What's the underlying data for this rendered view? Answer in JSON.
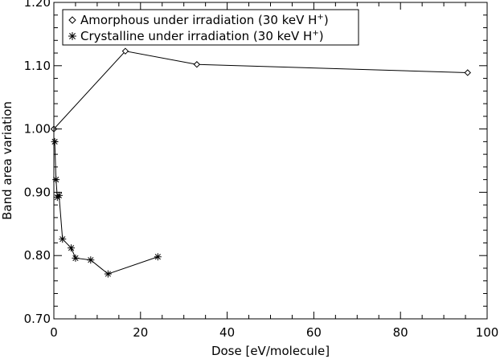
{
  "chart_data": {
    "type": "line",
    "xlabel": "Dose [eV/molecule]",
    "ylabel": "Band area variation",
    "xlim": [
      0,
      100
    ],
    "ylim": [
      0.7,
      1.2
    ],
    "x_ticks": [
      0,
      20,
      40,
      60,
      80,
      100
    ],
    "x_tick_labels": [
      "0",
      "20",
      "40",
      "60",
      "80",
      "100"
    ],
    "y_ticks": [
      0.7,
      0.8,
      0.9,
      1.0,
      1.1,
      1.2
    ],
    "y_tick_labels": [
      "0.70",
      "0.80",
      "0.90",
      "1.00",
      "1.10",
      "1.20"
    ],
    "grid": false,
    "legend_position": "top-left",
    "series": [
      {
        "name": "Amorphous under irradiation (30 keV H+)",
        "legend_main": "Amorphous under irradiation (30 keV H",
        "legend_sup": "+",
        "legend_end": ")",
        "marker": "diamond",
        "color": "#000000",
        "x": [
          0,
          16.5,
          33,
          95.5
        ],
        "y": [
          1.0,
          1.123,
          1.102,
          1.089
        ]
      },
      {
        "name": "Crystalline under irradiation (30 keV H+)",
        "legend_main": "Crystalline under irradiation (30 keV H",
        "legend_sup": "+",
        "legend_end": ")",
        "marker": "asterisk",
        "color": "#000000",
        "x": [
          0.2,
          0.5,
          0.8,
          1.2,
          2.0,
          4.0,
          5.0,
          8.5,
          12.5,
          24.0
        ],
        "y": [
          0.98,
          0.92,
          0.892,
          0.895,
          0.826,
          0.812,
          0.796,
          0.793,
          0.771,
          0.798
        ]
      }
    ]
  }
}
